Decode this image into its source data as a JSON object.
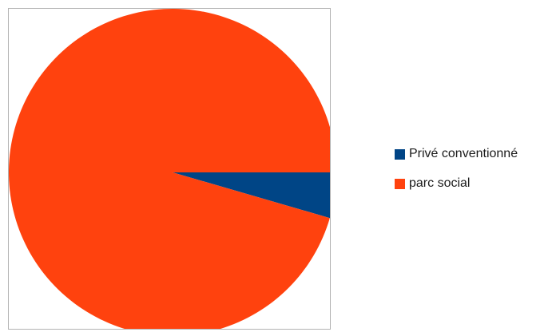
{
  "chart_data": {
    "type": "pie",
    "title": "",
    "categories": [
      "Privé conventionné",
      "parc social"
    ],
    "values": [
      4.5,
      95.5
    ],
    "colors": [
      "#004586",
      "#ff420e"
    ],
    "start_angle_deg": 0,
    "direction": "clockwise",
    "legend_position": "right",
    "grid": false
  }
}
